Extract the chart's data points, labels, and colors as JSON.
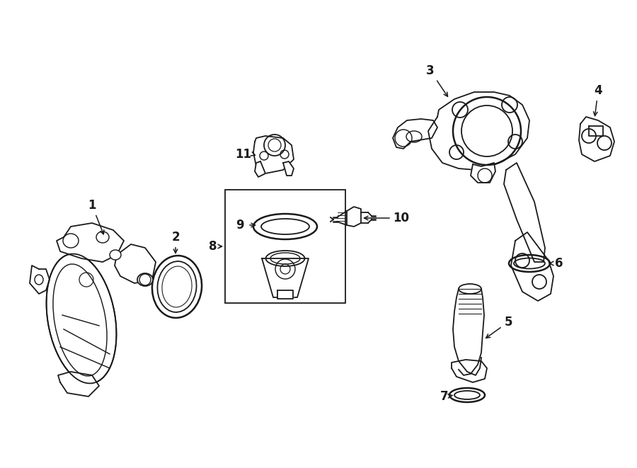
{
  "background_color": "#ffffff",
  "line_color": "#1a1a1a",
  "lw": 1.3,
  "fig_width": 9.0,
  "fig_height": 6.61,
  "dpi": 100
}
